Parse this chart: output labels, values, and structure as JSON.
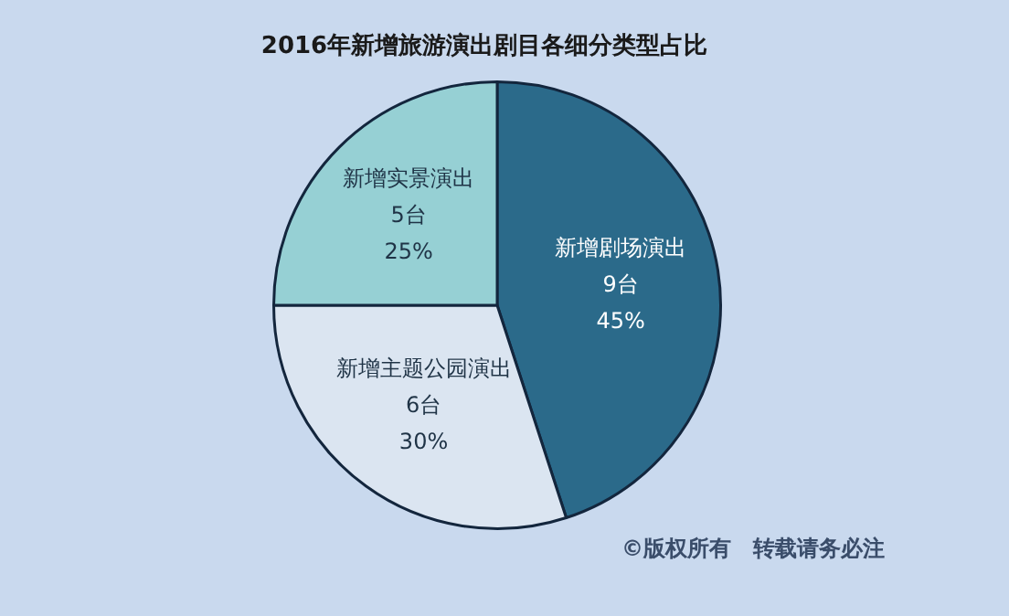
{
  "chart_data": {
    "type": "pie",
    "title": "2016年新增旅游演出剧目各细分类型占比",
    "categories": [
      "新增剧场演出",
      "新增主题公园演出",
      "新增实景演出"
    ],
    "values": [
      9,
      6,
      5
    ],
    "value_labels": [
      "9台\n45%",
      "6台\n30%",
      "5台\n25%"
    ],
    "colors": [
      "#2b6a8a",
      "#dbe5f1",
      "#96d0d4"
    ],
    "annotations": [
      "©版权所有　转载请务必注"
    ]
  }
}
